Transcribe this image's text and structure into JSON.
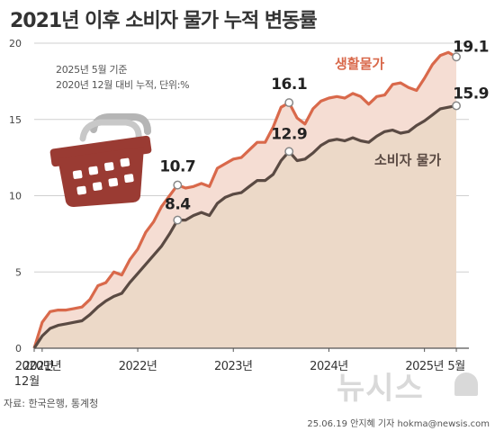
{
  "title": "2021년 이후 소비자 물가 누적 변동률",
  "notes": [
    "2025년 5월 기준",
    "2020년 12월 대비 누적, 단위:%"
  ],
  "source": "자료: 한국은행, 통계청",
  "credit": "25.06.19 안지혜 기자 hokma@newsis.com",
  "watermark": "뉴시스",
  "colors": {
    "living": "#d9694b",
    "cpi": "#5a4a43",
    "area_living": "#f5ddd3",
    "area_cpi": "#ecd9c8",
    "basket": "#9a3b33",
    "handle": "#b5b5b5"
  },
  "icon": "shopping-basket-icon",
  "chart_data": {
    "type": "line",
    "title": "2021년 이후 소비자 물가 누적 변동률",
    "xlabel": "",
    "ylabel": "",
    "ylim": [
      0,
      20
    ],
    "y_ticks": [
      "0",
      "5",
      "10",
      "15",
      "20"
    ],
    "x_ticks": [
      {
        "month": 0,
        "label": "2020년",
        "sub": "12월"
      },
      {
        "month": 1,
        "label": "2021년"
      },
      {
        "month": 13,
        "label": "2022년"
      },
      {
        "month": 25,
        "label": "2023년"
      },
      {
        "month": 37,
        "label": "2024년"
      },
      {
        "month": 49,
        "label": "2025년"
      },
      {
        "month": 53,
        "label": "5월"
      }
    ],
    "grid": "horizontal",
    "series": [
      {
        "name": "생활물가",
        "values": [
          0,
          1.7,
          2.4,
          2.5,
          2.5,
          2.6,
          2.7,
          3.2,
          4.1,
          4.3,
          5.0,
          4.8,
          5.8,
          6.5,
          7.6,
          8.3,
          9.3,
          10.0,
          10.7,
          10.5,
          10.6,
          10.8,
          10.6,
          11.8,
          12.1,
          12.4,
          12.5,
          13.0,
          13.5,
          13.5,
          14.5,
          15.8,
          16.1,
          15.1,
          14.7,
          15.7,
          16.2,
          16.4,
          16.5,
          16.4,
          16.7,
          16.5,
          16.0,
          16.5,
          16.6,
          17.3,
          17.4,
          17.1,
          16.9,
          17.7,
          18.6,
          19.2,
          19.4,
          19.1
        ],
        "labels": [
          {
            "month": 18,
            "text": "10.7"
          },
          {
            "month": 32,
            "text": "16.1"
          },
          {
            "month": 53,
            "text": "19.1"
          }
        ]
      },
      {
        "name": "소비자 물가",
        "values": [
          0,
          0.8,
          1.3,
          1.5,
          1.6,
          1.7,
          1.8,
          2.2,
          2.7,
          3.1,
          3.4,
          3.6,
          4.3,
          4.9,
          5.5,
          6.1,
          6.7,
          7.5,
          8.4,
          8.4,
          8.7,
          8.9,
          8.7,
          9.5,
          9.9,
          10.1,
          10.2,
          10.6,
          11.0,
          11.0,
          11.4,
          12.3,
          12.9,
          12.3,
          12.4,
          12.8,
          13.3,
          13.6,
          13.7,
          13.6,
          13.8,
          13.6,
          13.5,
          13.9,
          14.2,
          14.3,
          14.1,
          14.2,
          14.6,
          14.9,
          15.3,
          15.7,
          15.8,
          15.9
        ],
        "labels": [
          {
            "month": 18,
            "text": "8.4"
          },
          {
            "month": 32,
            "text": "12.9"
          },
          {
            "month": 53,
            "text": "15.9"
          }
        ]
      }
    ]
  }
}
